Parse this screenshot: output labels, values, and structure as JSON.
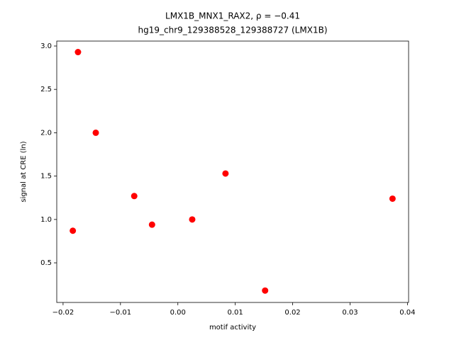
{
  "chart_data": {
    "type": "scatter",
    "title": "LMX1B_MNX1_RAX2, ρ = −0.41",
    "subtitle": "hg19_chr9_129388528_129388727 (LMX1B)",
    "x_label": "motif activity",
    "y_label": "signal at CRE (ln)",
    "color": "#ff0000",
    "x": [
      -0.0183,
      -0.0174,
      -0.0143,
      -0.0076,
      -0.0045,
      0.0025,
      0.0083,
      0.0152,
      0.0374
    ],
    "values": [
      0.87,
      2.93,
      2.0,
      1.27,
      0.94,
      1.0,
      1.53,
      0.18,
      1.24
    ],
    "xlim": [
      -0.0211,
      0.0402
    ],
    "ylim": [
      0.043,
      3.057
    ],
    "xticks": [
      {
        "value": -0.02,
        "label": "−0.02"
      },
      {
        "value": -0.01,
        "label": "−0.01"
      },
      {
        "value": 0,
        "label": "0.00"
      },
      0.01,
      0.02,
      0.03,
      0.04
    ],
    "yticks": [
      0.5,
      {
        "value": 1,
        "label": "1.0"
      },
      1.5,
      {
        "value": 2,
        "label": "2.0"
      },
      2.5,
      {
        "value": 3,
        "label": "3.0"
      }
    ]
  }
}
